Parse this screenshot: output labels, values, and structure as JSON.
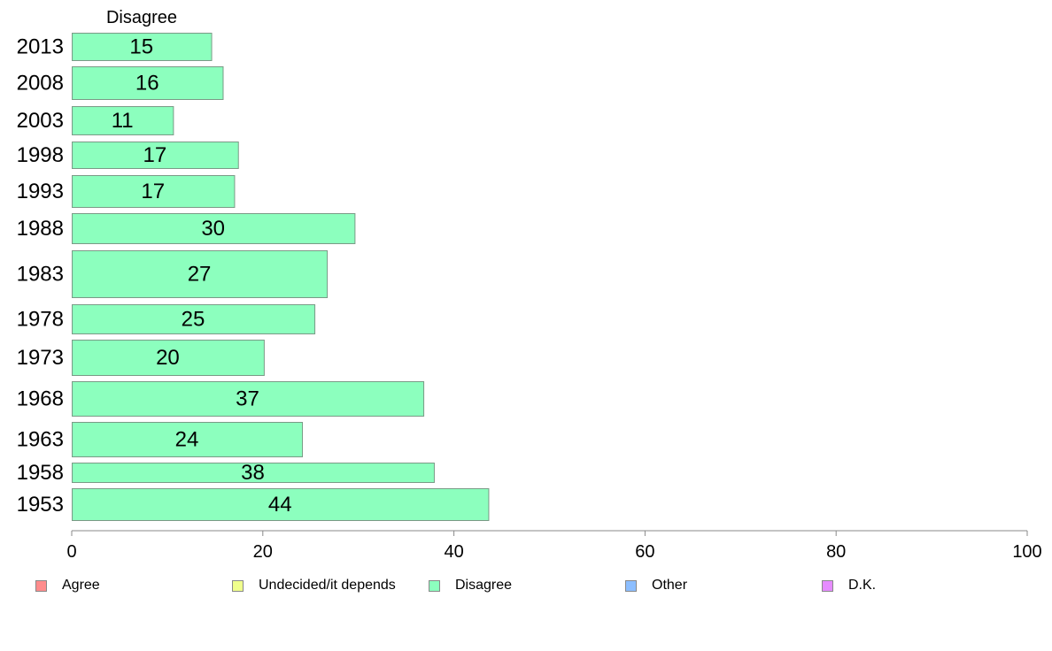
{
  "chart_data": {
    "type": "bar",
    "orientation": "horizontal",
    "series_header": "Disagree",
    "categories": [
      "2013",
      "2008",
      "2003",
      "1998",
      "1993",
      "1988",
      "1983",
      "1978",
      "1973",
      "1968",
      "1963",
      "1958",
      "1953"
    ],
    "values": [
      15,
      16,
      11,
      17,
      17,
      30,
      27,
      25,
      20,
      37,
      24,
      38,
      44
    ],
    "bar_values": [
      14.6,
      15.8,
      10.6,
      17.4,
      17.0,
      29.6,
      26.7,
      25.4,
      20.1,
      36.8,
      24.1,
      37.9,
      43.6
    ],
    "xlim": [
      0,
      100
    ],
    "xticks": [
      "0",
      "20",
      "40",
      "60",
      "80",
      "100"
    ],
    "xlabel": "",
    "ylabel": "",
    "grid": false,
    "bar_color": "#8cffbe",
    "legend_position": "bottom",
    "legend": [
      {
        "label": "Agree",
        "color": "#ff8c8c"
      },
      {
        "label": "Undecided/it depends",
        "color": "#f0ff8c"
      },
      {
        "label": "Disagree",
        "color": "#8cffbe"
      },
      {
        "label": "Other",
        "color": "#8cbeff"
      },
      {
        "label": "D.K.",
        "color": "#e68cff"
      }
    ]
  }
}
